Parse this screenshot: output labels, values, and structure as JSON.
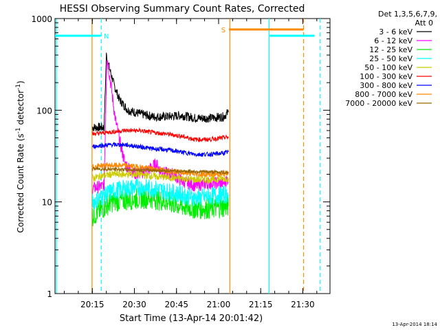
{
  "chart_data": {
    "type": "line",
    "title": "HESSI Observing Summary Count Rates, Corrected",
    "xlabel": "Start Time (13-Apr-14 20:01:42)",
    "ylabel": "Corrected Count Rate (s",
    "ylabel_sup1": "-1",
    "ylabel_mid": " detector",
    "ylabel_sup2": "-1",
    "ylabel_end": ")",
    "yscale": "log",
    "ylim": [
      1,
      1000
    ],
    "xlim_minutes": [
      0,
      98
    ],
    "x_ticks": [
      {
        "m": 13.3,
        "label": "20:15"
      },
      {
        "m": 28.3,
        "label": "20:30"
      },
      {
        "m": 43.3,
        "label": "20:45"
      },
      {
        "m": 58.3,
        "label": "21:00"
      },
      {
        "m": 73.3,
        "label": "21:15"
      },
      {
        "m": 88.3,
        "label": "21:30"
      }
    ],
    "y_ticks": [
      {
        "v": 1,
        "label": "1"
      },
      {
        "v": 10,
        "label": "10"
      },
      {
        "v": 100,
        "label": "100"
      },
      {
        "v": 1000,
        "label": "1000"
      }
    ],
    "legend": {
      "header1": "Det 1,3,5,6,7,9,",
      "header2": "Att 0",
      "position": "right"
    },
    "series": [
      {
        "name": "3 - 6 keV",
        "color": "#000000",
        "points": [
          [
            13.3,
            65
          ],
          [
            17.5,
            65
          ],
          [
            18.3,
            400
          ],
          [
            19.5,
            280
          ],
          [
            21,
            190
          ],
          [
            23,
            130
          ],
          [
            26,
            100
          ],
          [
            30,
            92
          ],
          [
            35,
            85
          ],
          [
            40,
            85
          ],
          [
            45,
            88
          ],
          [
            50,
            82
          ],
          [
            55,
            82
          ],
          [
            60,
            85
          ],
          [
            61.8,
            95
          ]
        ],
        "noise": 0.05
      },
      {
        "name": "6 - 12 keV",
        "color": "#ff00ff",
        "points": [
          [
            13.3,
            14
          ],
          [
            17.5,
            15
          ],
          [
            18.5,
            390
          ],
          [
            20,
            180
          ],
          [
            21.5,
            80
          ],
          [
            23.5,
            40
          ],
          [
            25,
            26
          ],
          [
            27,
            22
          ],
          [
            29,
            20
          ],
          [
            33,
            22
          ],
          [
            36,
            26
          ],
          [
            38,
            21
          ],
          [
            42,
            20
          ],
          [
            45,
            17
          ],
          [
            50,
            15
          ],
          [
            55,
            16
          ],
          [
            60,
            16
          ],
          [
            61.8,
            18
          ]
        ],
        "noise": 0.07
      },
      {
        "name": "12 - 25 keV",
        "color": "#00ee00",
        "points": [
          [
            13.3,
            7
          ],
          [
            16,
            8
          ],
          [
            20,
            10
          ],
          [
            25,
            10.5
          ],
          [
            30,
            11
          ],
          [
            35,
            11
          ],
          [
            40,
            10
          ],
          [
            45,
            9
          ],
          [
            50,
            8.5
          ],
          [
            55,
            8.5
          ],
          [
            60,
            8.8
          ],
          [
            61.8,
            9
          ]
        ],
        "noise": 0.12
      },
      {
        "name": "25 - 50 keV",
        "color": "#00ffff",
        "points": [
          [
            13.3,
            10
          ],
          [
            16,
            11
          ],
          [
            20,
            13
          ],
          [
            25,
            14
          ],
          [
            30,
            14.5
          ],
          [
            35,
            14
          ],
          [
            40,
            13
          ],
          [
            45,
            12
          ],
          [
            50,
            11
          ],
          [
            55,
            11.5
          ],
          [
            60,
            12
          ],
          [
            61.8,
            12
          ]
        ],
        "noise": 0.1
      },
      {
        "name": "50 - 100 keV",
        "color": "#cccc00",
        "points": [
          [
            13.3,
            18
          ],
          [
            16,
            19
          ],
          [
            20,
            20
          ],
          [
            25,
            20
          ],
          [
            30,
            20
          ],
          [
            35,
            19
          ],
          [
            40,
            18.5
          ],
          [
            45,
            18
          ],
          [
            50,
            17.5
          ],
          [
            55,
            17.5
          ],
          [
            60,
            18
          ],
          [
            61.8,
            18
          ]
        ],
        "noise": 0.04
      },
      {
        "name": "100 - 300 keV",
        "color": "#ff0000",
        "points": [
          [
            13.3,
            55
          ],
          [
            16,
            56
          ],
          [
            20,
            58
          ],
          [
            25,
            60
          ],
          [
            30,
            60
          ],
          [
            35,
            57
          ],
          [
            40,
            55
          ],
          [
            45,
            52
          ],
          [
            50,
            48
          ],
          [
            55,
            48
          ],
          [
            60,
            50
          ],
          [
            61.8,
            51
          ]
        ],
        "noise": 0.025
      },
      {
        "name": "300 - 800 keV",
        "color": "#0000ff",
        "points": [
          [
            13.3,
            40
          ],
          [
            16,
            41
          ],
          [
            20,
            42
          ],
          [
            25,
            42
          ],
          [
            30,
            40
          ],
          [
            35,
            38
          ],
          [
            40,
            37
          ],
          [
            45,
            35
          ],
          [
            50,
            33
          ],
          [
            55,
            33
          ],
          [
            60,
            34
          ],
          [
            61.8,
            35
          ]
        ],
        "noise": 0.025
      },
      {
        "name": "800 - 7000 keV",
        "color": "#ff8800",
        "points": [
          [
            13.3,
            24
          ],
          [
            16,
            25
          ],
          [
            20,
            25
          ],
          [
            25,
            25
          ],
          [
            30,
            24
          ],
          [
            35,
            23
          ],
          [
            40,
            22
          ],
          [
            45,
            21
          ],
          [
            50,
            20
          ],
          [
            55,
            20
          ],
          [
            60,
            20
          ],
          [
            61.8,
            21
          ]
        ],
        "noise": 0.03
      },
      {
        "name": "7000 - 20000 keV",
        "color": "#996600",
        "points": [
          [
            13.3,
            23
          ],
          [
            61.8,
            21
          ]
        ],
        "noise": 0.02
      }
    ],
    "intervals": [
      {
        "kind": "cyan",
        "color": "#00ffff",
        "y": 650,
        "segments": [
          [
            0,
            16.3
          ],
          [
            76.5,
            92.5
          ]
        ],
        "label": "N",
        "label_m": 18.3
      },
      {
        "kind": "orange",
        "color": "#ff8800",
        "y": 760,
        "segments": [
          [
            62,
            88.6
          ]
        ],
        "label": "S",
        "label_m": 60
      }
    ],
    "vlines": [
      {
        "m": 0.5,
        "color": "#00ffff",
        "dash": false
      },
      {
        "m": 16.5,
        "color": "#00ffff",
        "dash": true
      },
      {
        "m": 76.3,
        "color": "#00ffff",
        "dash": false
      },
      {
        "m": 94.5,
        "color": "#00ffff",
        "dash": true
      },
      {
        "m": 13.2,
        "color": "#ff8800",
        "dash": false
      },
      {
        "m": 62.3,
        "color": "#ff8800",
        "dash": false
      },
      {
        "m": 88.6,
        "color": "#ff8800",
        "dash": true
      }
    ]
  },
  "footer": {
    "timestamp": "13-Apr-2014 18:14"
  }
}
